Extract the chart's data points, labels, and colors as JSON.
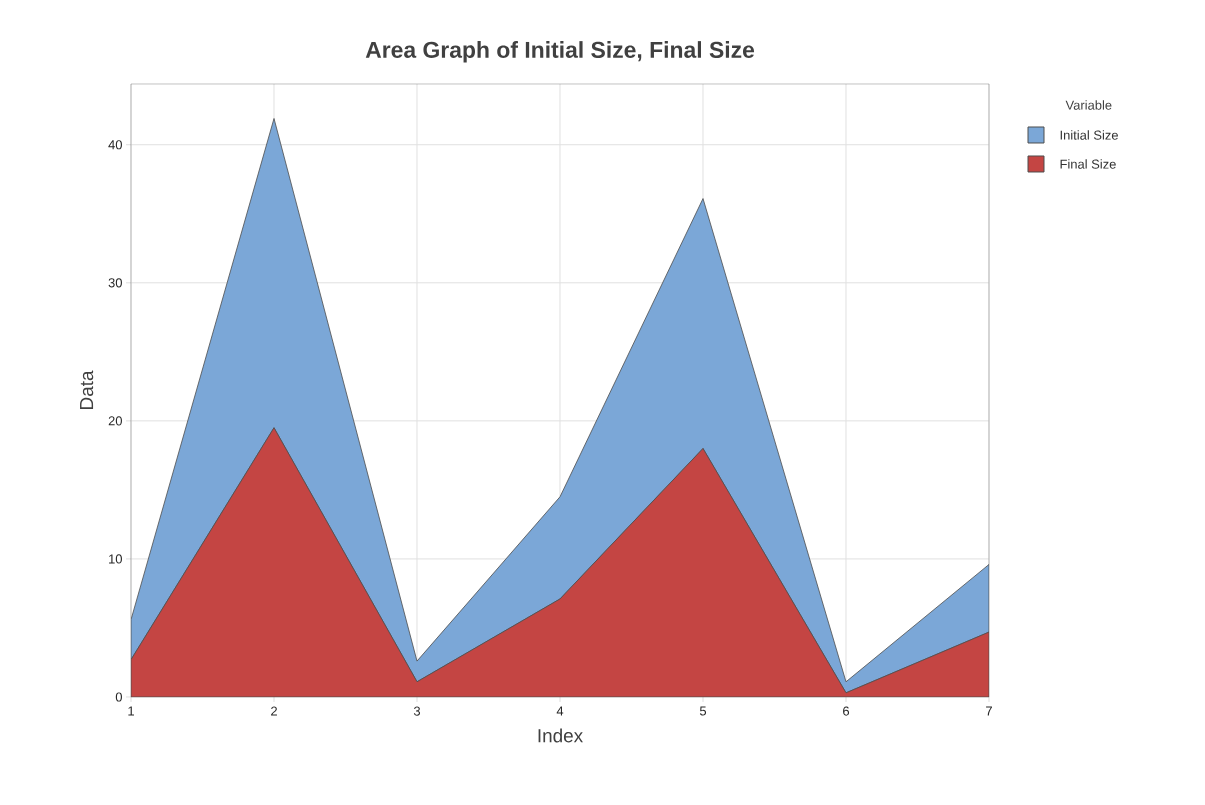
{
  "chart_data": {
    "type": "area",
    "title": "Area Graph of Initial Size, Final Size",
    "xlabel": "Index",
    "ylabel": "Data",
    "legend_title": "Variable",
    "stacked": true,
    "x": [
      1,
      2,
      3,
      4,
      5,
      6,
      7
    ],
    "series": [
      {
        "name": "Final Size",
        "color": "#c44543",
        "values": [
          2.7,
          19.5,
          1.1,
          7.1,
          18.0,
          0.3,
          4.7
        ]
      },
      {
        "name": "Initial Size",
        "color": "#7ba7d7",
        "values": [
          2.9,
          22.4,
          1.5,
          7.4,
          18.1,
          0.8,
          4.9
        ]
      }
    ],
    "xlim": [
      1,
      7
    ],
    "xticks": [
      1,
      2,
      3,
      4,
      5,
      6,
      7
    ],
    "ylim": [
      0,
      44.4
    ],
    "yticks": [
      0,
      10,
      20,
      30,
      40
    ],
    "grid": true,
    "legend": "top right"
  }
}
